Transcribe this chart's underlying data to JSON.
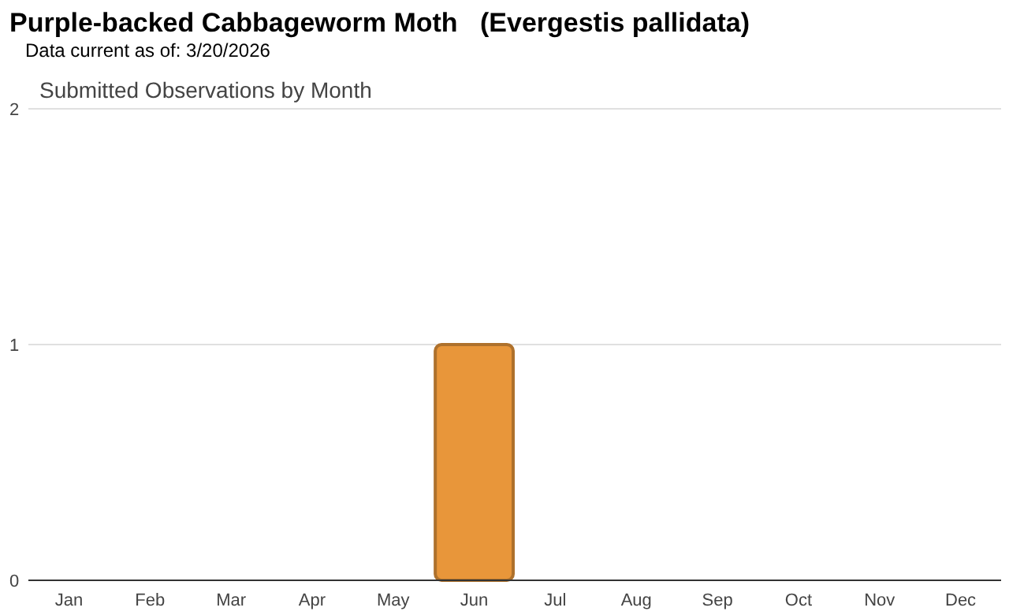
{
  "chart_data": {
    "type": "bar",
    "title": "Purple-backed Cabbageworm Moth   (Evergestis pallidata)",
    "subtitle": "Data current as of: 3/20/2026",
    "annotations": [
      "Submitted Observations by Month"
    ],
    "categories": [
      "Jan",
      "Feb",
      "Mar",
      "Apr",
      "May",
      "Jun",
      "Jul",
      "Aug",
      "Sep",
      "Oct",
      "Nov",
      "Dec"
    ],
    "values": [
      0,
      0,
      0,
      0,
      0,
      1,
      0,
      0,
      0,
      0,
      0,
      0
    ],
    "color": "#e8963a",
    "ylim": [
      0,
      2
    ],
    "yticks": [
      0,
      1,
      2
    ],
    "grid": "y"
  }
}
